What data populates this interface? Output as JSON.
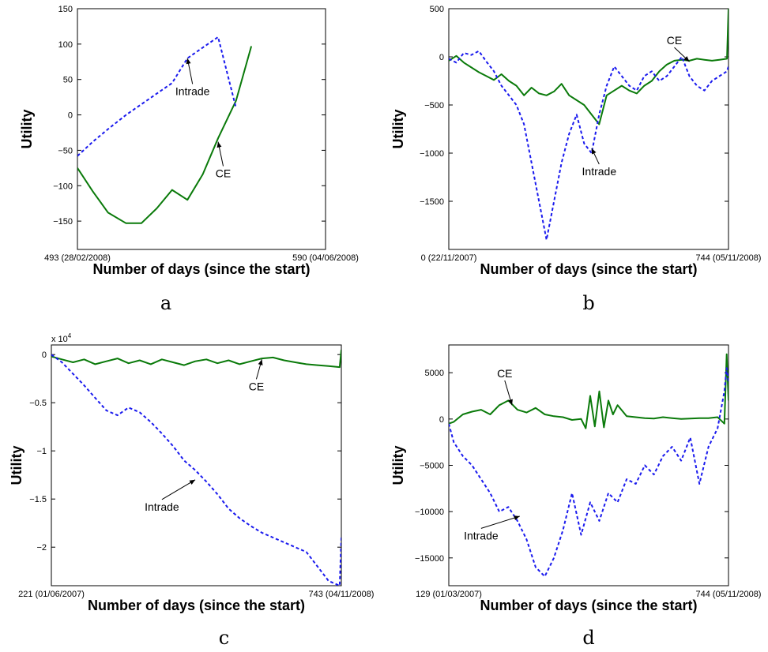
{
  "chart_data": [
    {
      "panel": "a",
      "type": "line",
      "caption": "a",
      "xlabel": "Number of days (since the start)",
      "ylabel": "Utility",
      "xlim": [
        493,
        590
      ],
      "ylim": [
        -190,
        150
      ],
      "yticks": [
        -150,
        -100,
        -50,
        0,
        50,
        100,
        150
      ],
      "ytick_labels": [
        "−150",
        "−100",
        "−50",
        "0",
        "50",
        "100",
        "150"
      ],
      "x_tick_labels": [
        "493 (28/02/2008)",
        "590 (04/06/2008)"
      ],
      "exponent_label": "",
      "colors": {
        "CE": "#0a7a0a",
        "Intrade": "#1a1aee"
      },
      "series": [
        {
          "name": "CE",
          "style": "solid",
          "x": [
            493,
            499,
            505,
            512,
            518,
            524,
            530,
            536,
            542,
            548,
            555,
            561,
            567,
            574,
            580,
            586,
            590
          ],
          "y": [
            -75,
            -108,
            -138,
            -153,
            -153,
            -132,
            -106,
            -120,
            -84,
            -33,
            20,
            97,
            null,
            null,
            null,
            null,
            null
          ]
        },
        {
          "name": "Intrade",
          "style": "dashed",
          "x": [
            493,
            499,
            505,
            512,
            518,
            524,
            530,
            536,
            542,
            548,
            555,
            561,
            567,
            574,
            580,
            586,
            590
          ],
          "y": [
            -58,
            -38,
            -20,
            0,
            15,
            30,
            45,
            80,
            95,
            110,
            10,
            null,
            null,
            null,
            null,
            null,
            null
          ]
        }
      ],
      "annotations": [
        {
          "text": "Intrade",
          "series": "Intrade",
          "at_x": 536,
          "at_y": 80,
          "text_x": 538,
          "text_y": 28
        },
        {
          "text": "CE",
          "series": "CE",
          "at_x": 548,
          "at_y": -38,
          "text_x": 550,
          "text_y": -88
        }
      ]
    },
    {
      "panel": "b",
      "type": "line",
      "caption": "b",
      "xlabel": "Number of days (since the start)",
      "ylabel": "Utility",
      "xlim": [
        0,
        744
      ],
      "ylim": [
        -2000,
        500
      ],
      "yticks": [
        -1500,
        -1000,
        -500,
        0,
        500
      ],
      "ytick_labels": [
        "−1500",
        "−1000",
        "−500",
        "0",
        "500"
      ],
      "x_tick_labels": [
        "0 (22/11/2007)",
        "744 (05/11/2008)"
      ],
      "exponent_label": "",
      "colors": {
        "CE": "#0a7a0a",
        "Intrade": "#1a1aee"
      },
      "series": [
        {
          "name": "CE",
          "style": "solid",
          "x": [
            0,
            20,
            40,
            60,
            80,
            100,
            120,
            140,
            160,
            180,
            200,
            220,
            240,
            260,
            280,
            300,
            320,
            340,
            360,
            380,
            400,
            420,
            440,
            460,
            480,
            500,
            520,
            540,
            560,
            580,
            600,
            620,
            640,
            660,
            680,
            700,
            720,
            740,
            744
          ],
          "y": [
            -40,
            10,
            -60,
            -110,
            -160,
            -200,
            -240,
            -180,
            -250,
            -300,
            -400,
            -320,
            -380,
            -400,
            -360,
            -280,
            -400,
            -450,
            -500,
            -600,
            -700,
            -400,
            -350,
            -300,
            -350,
            -380,
            -300,
            -250,
            -150,
            -80,
            -40,
            -30,
            -40,
            -20,
            -30,
            -40,
            -30,
            -20,
            500
          ]
        },
        {
          "name": "Intrade",
          "style": "dashed",
          "x": [
            0,
            20,
            40,
            60,
            80,
            100,
            120,
            140,
            160,
            180,
            200,
            220,
            240,
            260,
            280,
            300,
            320,
            340,
            360,
            380,
            400,
            420,
            440,
            460,
            480,
            500,
            520,
            540,
            560,
            580,
            600,
            620,
            640,
            660,
            680,
            700,
            720,
            740,
            744
          ],
          "y": [
            -20,
            -60,
            40,
            20,
            60,
            -50,
            -150,
            -300,
            -400,
            -500,
            -700,
            -1100,
            -1500,
            -1900,
            -1500,
            -1100,
            -800,
            -600,
            -900,
            -1000,
            -600,
            -300,
            -100,
            -200,
            -300,
            -350,
            -200,
            -150,
            -250,
            -200,
            -100,
            0,
            -200,
            -300,
            -350,
            -250,
            -200,
            -150,
            -100
          ]
        }
      ],
      "annotations": [
        {
          "text": "CE",
          "series": "CE",
          "at_x": 640,
          "at_y": -50,
          "text_x": 600,
          "text_y": 130
        },
        {
          "text": "Intrade",
          "series": "Intrade",
          "at_x": 380,
          "at_y": -950,
          "text_x": 400,
          "text_y": -1230
        }
      ]
    },
    {
      "panel": "c",
      "type": "line",
      "caption": "c",
      "xlabel": "Number of days (since the start)",
      "ylabel": "Utility",
      "xlim": [
        221,
        743
      ],
      "ylim": [
        -2.4,
        0.1
      ],
      "yticks": [
        -2,
        -1.5,
        -1,
        -0.5,
        0
      ],
      "ytick_labels": [
        "−2",
        "−1.5",
        "−1",
        "−0.5",
        "0"
      ],
      "x_tick_labels": [
        "221 (01/06/2007)",
        "743 (04/11/2008)"
      ],
      "exponent_label": "x 10",
      "exponent_sup": "4",
      "colors": {
        "CE": "#0a7a0a",
        "Intrade": "#1a1aee"
      },
      "series": [
        {
          "name": "CE",
          "style": "solid",
          "x": [
            221,
            240,
            260,
            280,
            300,
            320,
            340,
            360,
            380,
            400,
            420,
            440,
            460,
            480,
            500,
            520,
            540,
            560,
            580,
            600,
            620,
            640,
            660,
            680,
            700,
            720,
            740,
            743
          ],
          "y": [
            -0.02,
            -0.05,
            -0.08,
            -0.05,
            -0.1,
            -0.07,
            -0.04,
            -0.09,
            -0.06,
            -0.1,
            -0.05,
            -0.08,
            -0.11,
            -0.07,
            -0.05,
            -0.09,
            -0.06,
            -0.1,
            -0.07,
            -0.04,
            -0.03,
            -0.06,
            -0.08,
            -0.1,
            -0.11,
            -0.12,
            -0.13,
            0.05
          ]
        },
        {
          "name": "Intrade",
          "style": "dashed",
          "x": [
            221,
            240,
            260,
            280,
            300,
            320,
            340,
            360,
            380,
            400,
            420,
            440,
            460,
            480,
            500,
            520,
            540,
            560,
            580,
            600,
            620,
            640,
            660,
            680,
            700,
            720,
            740,
            743
          ],
          "y": [
            0,
            -0.08,
            -0.2,
            -0.32,
            -0.45,
            -0.58,
            -0.63,
            -0.55,
            -0.6,
            -0.7,
            -0.82,
            -0.95,
            -1.1,
            -1.2,
            -1.32,
            -1.45,
            -1.6,
            -1.7,
            -1.78,
            -1.85,
            -1.9,
            -1.95,
            -2.0,
            -2.05,
            -2.2,
            -2.35,
            -2.4,
            -1.9
          ]
        }
      ],
      "annotations": [
        {
          "text": "CE",
          "series": "CE",
          "at_x": 600,
          "at_y": -0.05,
          "text_x": 590,
          "text_y": -0.37
        },
        {
          "text": "Intrade",
          "series": "Intrade",
          "at_x": 480,
          "at_y": -1.3,
          "text_x": 420,
          "text_y": -1.62
        }
      ]
    },
    {
      "panel": "d",
      "type": "line",
      "caption": "d",
      "xlabel": "Number of days (since the start)",
      "ylabel": "Utility",
      "xlim": [
        129,
        744
      ],
      "ylim": [
        -18000,
        8000
      ],
      "yticks": [
        -15000,
        -10000,
        -5000,
        0,
        5000
      ],
      "ytick_labels": [
        "−15000",
        "−10000",
        "−5000",
        "0",
        "5000"
      ],
      "x_tick_labels": [
        "129 (01/03/2007)",
        "744 (05/11/2008)"
      ],
      "exponent_label": "",
      "colors": {
        "CE": "#0a7a0a",
        "Intrade": "#1a1aee"
      },
      "series": [
        {
          "name": "CE",
          "style": "solid",
          "x": [
            129,
            140,
            160,
            180,
            200,
            220,
            240,
            260,
            280,
            300,
            320,
            340,
            360,
            380,
            400,
            420,
            430,
            440,
            450,
            460,
            470,
            480,
            490,
            500,
            520,
            540,
            560,
            580,
            600,
            620,
            640,
            660,
            680,
            700,
            720,
            735,
            740,
            744
          ],
          "y": [
            -500,
            -300,
            500,
            800,
            1000,
            500,
            1500,
            2000,
            1000,
            700,
            1200,
            500,
            300,
            200,
            -100,
            0,
            -1000,
            2500,
            -800,
            3000,
            -900,
            2000,
            500,
            1500,
            300,
            200,
            100,
            50,
            200,
            100,
            0,
            50,
            100,
            100,
            200,
            -500,
            7000,
            2000
          ]
        },
        {
          "name": "Intrade",
          "style": "dashed",
          "x": [
            129,
            140,
            160,
            180,
            200,
            220,
            240,
            260,
            280,
            300,
            320,
            340,
            360,
            380,
            400,
            420,
            440,
            460,
            480,
            500,
            520,
            540,
            560,
            580,
            600,
            620,
            640,
            660,
            680,
            700,
            720,
            735,
            740,
            744
          ],
          "y": [
            -500,
            -2500,
            -4000,
            -5000,
            -6500,
            -8000,
            -10000,
            -9500,
            -11000,
            -13000,
            -16000,
            -17000,
            -15000,
            -12000,
            -8000,
            -12500,
            -9000,
            -11000,
            -8000,
            -9000,
            -6500,
            -7000,
            -5000,
            -6000,
            -4000,
            -3000,
            -4500,
            -2000,
            -7000,
            -3000,
            -1000,
            3000,
            5500,
            4000
          ]
        }
      ],
      "annotations": [
        {
          "text": "CE",
          "series": "CE",
          "at_x": 268,
          "at_y": 1500,
          "text_x": 252,
          "text_y": 4500
        },
        {
          "text": "Intrade",
          "series": "Intrade",
          "at_x": 285,
          "at_y": -10500,
          "text_x": 200,
          "text_y": -13000
        }
      ]
    }
  ]
}
